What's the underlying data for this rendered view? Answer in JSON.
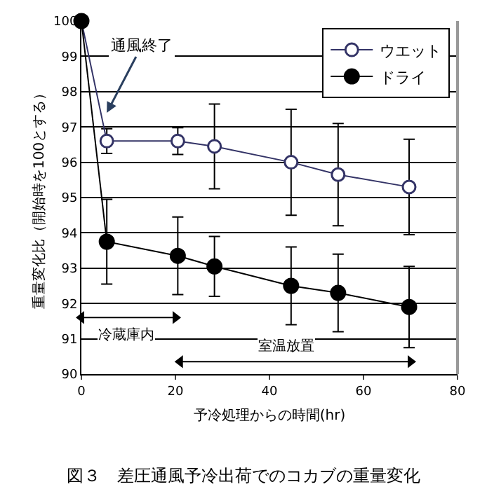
{
  "chart_data": {
    "type": "line",
    "title": "図３　差圧通風予冷出荷でのコカブの重量変化",
    "xlabel": "予冷処理からの時間(hr)",
    "ylabel": "重量変化比（開始時を100とする）",
    "x": [
      0,
      5.4,
      20.5,
      28.3,
      44.6,
      54.6,
      69.7
    ],
    "series": [
      {
        "name": "ウエット",
        "color": "#333366",
        "values": [
          100,
          96.6,
          96.6,
          96.45,
          96.0,
          95.65,
          95.3
        ],
        "errors": [
          null,
          0.35,
          0.38,
          1.2,
          1.5,
          1.45,
          1.35
        ]
      },
      {
        "name": "ドライ",
        "color": "#000000",
        "values": [
          100,
          93.75,
          93.35,
          93.05,
          92.5,
          92.3,
          91.9
        ],
        "errors": [
          null,
          1.2,
          1.1,
          0.85,
          1.1,
          1.1,
          1.15
        ]
      },
      {
        "type": "line",
        "color": "#000000",
        "x": [
          0,
          20
        ],
        "values": [
          91.6,
          91.6
        ],
        "marker": "triangle"
      },
      {
        "type": "line",
        "color": "#000000",
        "x": [
          21,
          70
        ],
        "values": [
          90.35,
          90.35
        ],
        "marker": "triangle"
      }
    ],
    "xlim": [
      0,
      80
    ],
    "xticks": [
      0,
      20,
      40,
      60,
      80
    ],
    "ylim": [
      90,
      100
    ],
    "yticks": [
      90,
      91,
      92,
      93,
      94,
      95,
      96,
      97,
      98,
      99,
      100
    ],
    "grid": "y",
    "legend": "top right",
    "marker": "circle",
    "line_style": "solid",
    "annotations": [
      {
        "text": "通風終了",
        "x": 5.4,
        "y": 97.4
      },
      "冷蔵庫内",
      "室温放置"
    ]
  }
}
